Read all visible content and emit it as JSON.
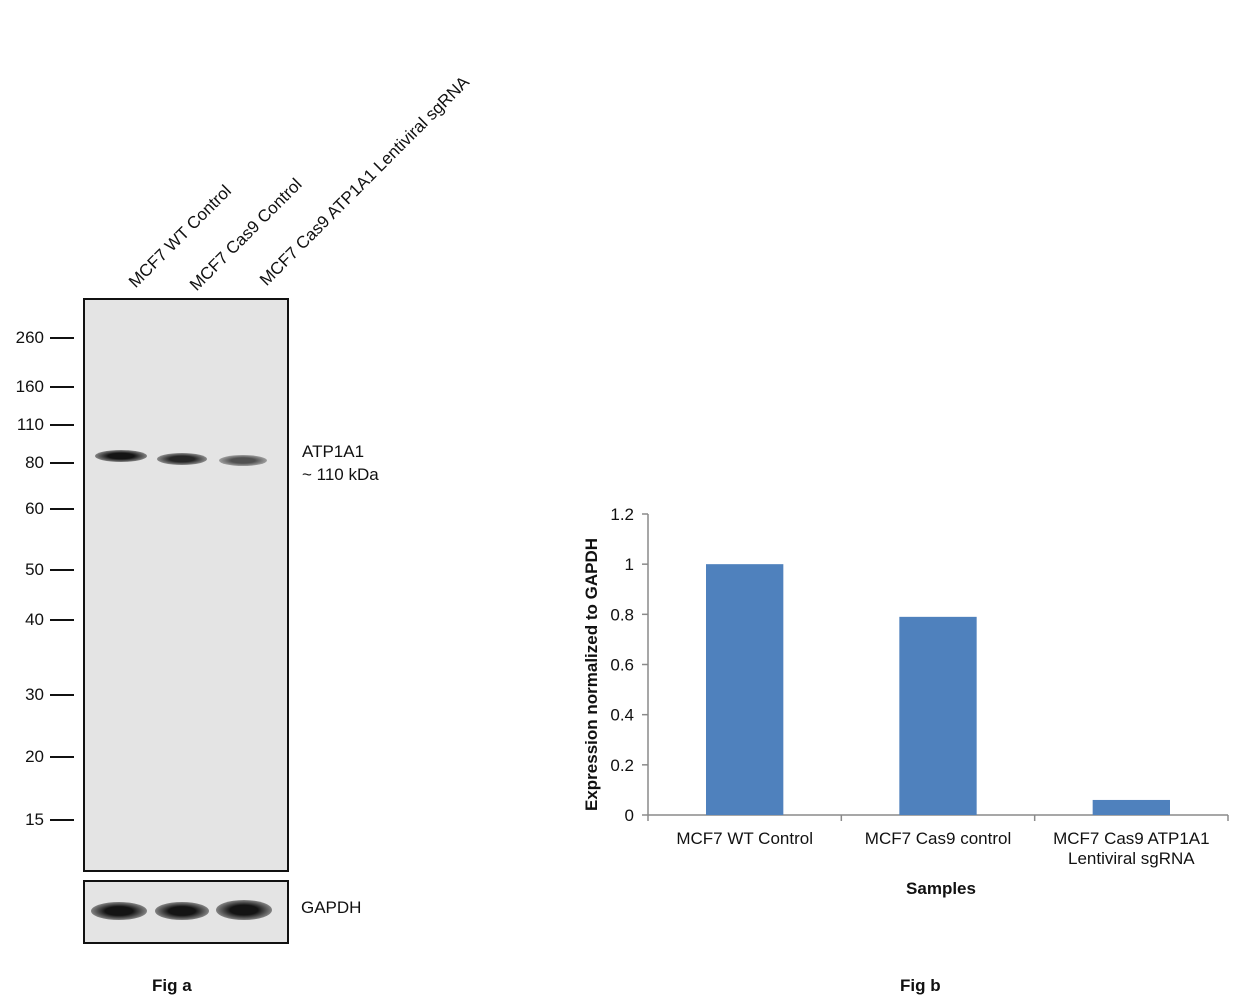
{
  "fig_a": {
    "caption": "Fig a",
    "lanes": [
      "MCF7 WT Control",
      "MCF7 Cas9 Control",
      "MCF7 Cas9 ATP1A1 Lentiviral sgRNA"
    ],
    "mw_markers": [
      "260",
      "160",
      "110",
      "80",
      "60",
      "50",
      "40",
      "30",
      "20",
      "15"
    ],
    "target_label": "ATP1A1",
    "target_size": "~ 110 kDa",
    "loading_control": "GAPDH",
    "band_intensity": [
      1.0,
      0.85,
      0.5
    ],
    "gapdh_intensity": [
      1.0,
      1.0,
      1.0
    ]
  },
  "chart_data": {
    "type": "bar",
    "title": "",
    "caption": "Fig b",
    "categories": [
      [
        "MCF7 WT Control"
      ],
      [
        "MCF7 Cas9 control"
      ],
      [
        "MCF7  Cas9 ATP1A1",
        "Lentiviral sgRNA"
      ]
    ],
    "values": [
      1.0,
      0.79,
      0.06
    ],
    "ylim": [
      0,
      1.2
    ],
    "yticks": [
      "0",
      "0.2",
      "0.4",
      "0.6",
      "0.8",
      "1",
      "1.2"
    ],
    "ylabel": "Expression  normalized to GAPDH",
    "xlabel": "Samples",
    "bar_color": "#4f81bd",
    "grid": false,
    "legend": "none"
  }
}
